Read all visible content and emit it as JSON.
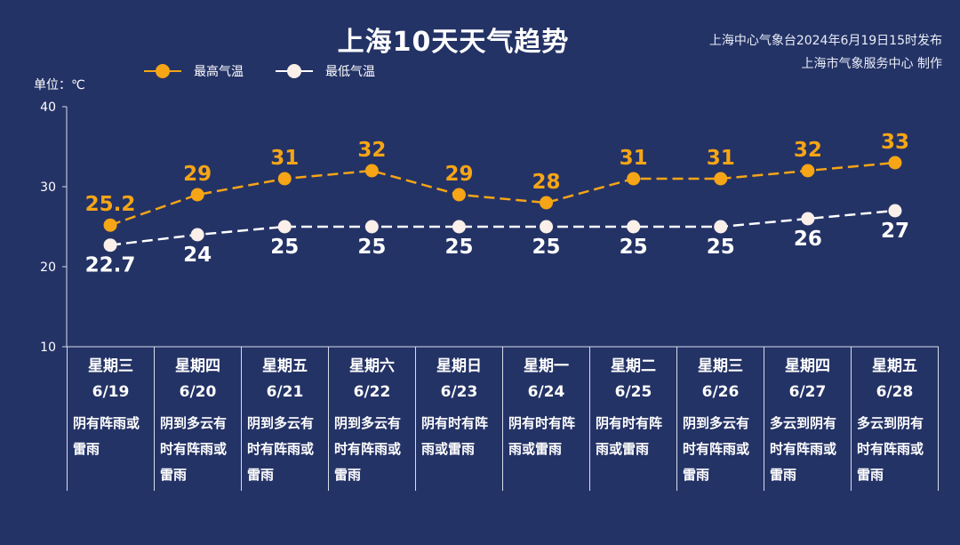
{
  "header": {
    "title": "上海10天天气趋势",
    "publisher_line1": "上海中心气象台2024年6月19日15时发布",
    "publisher_line2": "上海市气象服务中心 制作"
  },
  "unit_label": "单位：℃",
  "colors": {
    "background": "#243366",
    "high": "#f5a516",
    "low": "#ffffff"
  },
  "chart_data": {
    "type": "line",
    "ylim": [
      10,
      40
    ],
    "yticks": [
      10,
      20,
      30,
      40
    ],
    "grid": false,
    "legend_position": "top-left",
    "series": [
      {
        "name": "最高气温",
        "values": [
          25.2,
          29,
          31,
          32,
          29,
          28,
          31,
          31,
          32,
          33
        ],
        "labels": [
          "25.2",
          "29",
          "31",
          "32",
          "29",
          "28",
          "31",
          "31",
          "32",
          "33"
        ]
      },
      {
        "name": "最低气温",
        "values": [
          22.7,
          24,
          25,
          25,
          25,
          25,
          25,
          25,
          26,
          27
        ],
        "labels": [
          "22.7",
          "24",
          "25",
          "25",
          "25",
          "25",
          "25",
          "25",
          "26",
          "27"
        ]
      }
    ]
  },
  "days": [
    {
      "weekday": "星期三",
      "date": "6/19",
      "weather": "阴有阵雨或雷雨"
    },
    {
      "weekday": "星期四",
      "date": "6/20",
      "weather": "阴到多云有时有阵雨或雷雨"
    },
    {
      "weekday": "星期五",
      "date": "6/21",
      "weather": "阴到多云有时有阵雨或雷雨"
    },
    {
      "weekday": "星期六",
      "date": "6/22",
      "weather": "阴到多云有时有阵雨或雷雨"
    },
    {
      "weekday": "星期日",
      "date": "6/23",
      "weather": "阴有时有阵雨或雷雨"
    },
    {
      "weekday": "星期一",
      "date": "6/24",
      "weather": "阴有时有阵雨或雷雨"
    },
    {
      "weekday": "星期二",
      "date": "6/25",
      "weather": "阴有时有阵雨或雷雨"
    },
    {
      "weekday": "星期三",
      "date": "6/26",
      "weather": "阴到多云有时有阵雨或雷雨"
    },
    {
      "weekday": "星期四",
      "date": "6/27",
      "weather": "多云到阴有时有阵雨或雷雨"
    },
    {
      "weekday": "星期五",
      "date": "6/28",
      "weather": "多云到阴有时有阵雨或雷雨"
    }
  ]
}
